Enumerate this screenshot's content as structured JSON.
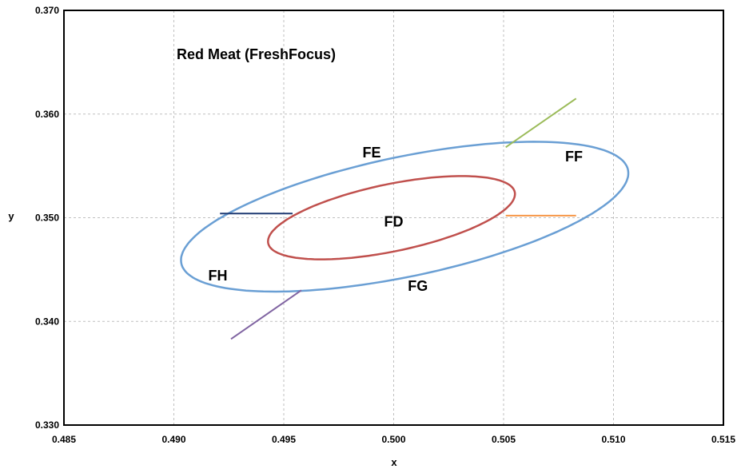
{
  "chart_data": {
    "type": "line",
    "title": "Red Meat (FreshFocus)",
    "xlabel": "x",
    "ylabel": "y",
    "xlim": [
      0.485,
      0.515
    ],
    "ylim": [
      0.33,
      0.37
    ],
    "xticks": [
      "0.485",
      "0.490",
      "0.495",
      "0.500",
      "0.505",
      "0.510",
      "0.515"
    ],
    "yticks": [
      "0.330",
      "0.340",
      "0.350",
      "0.360",
      "0.370"
    ],
    "grid": true,
    "ellipses": [
      {
        "color": "#6a9fd4",
        "center": [
          0.5005,
          0.3501
        ],
        "rx": 0.0113,
        "ry": 0.0053,
        "angle_deg": 29.5
      },
      {
        "color": "#c0504d",
        "center": [
          0.4999,
          0.35
        ],
        "rx": 0.00623,
        "ry": 0.00298,
        "angle_deg": 29.5
      }
    ],
    "series": [
      {
        "color": "#1f3b73",
        "x": [
          0.4921,
          0.4954
        ],
        "y": [
          0.3504,
          0.3504
        ]
      },
      {
        "color": "#f79646",
        "x": [
          0.5051,
          0.5083
        ],
        "y": [
          0.3502,
          0.3502
        ]
      },
      {
        "color": "#9bbb59",
        "x": [
          0.5051,
          0.5083
        ],
        "y": [
          0.3568,
          0.3615
        ]
      },
      {
        "color": "#8064a2",
        "x": [
          0.4926,
          0.4958
        ],
        "y": [
          0.3383,
          0.343
        ]
      }
    ],
    "annotations": [
      {
        "text": "FE",
        "x": 0.499,
        "y": 0.3562
      },
      {
        "text": "FF",
        "x": 0.5082,
        "y": 0.3558
      },
      {
        "text": "FD",
        "x": 0.5,
        "y": 0.3495
      },
      {
        "text": "FH",
        "x": 0.492,
        "y": 0.3443
      },
      {
        "text": "FG",
        "x": 0.5011,
        "y": 0.3433
      }
    ]
  }
}
